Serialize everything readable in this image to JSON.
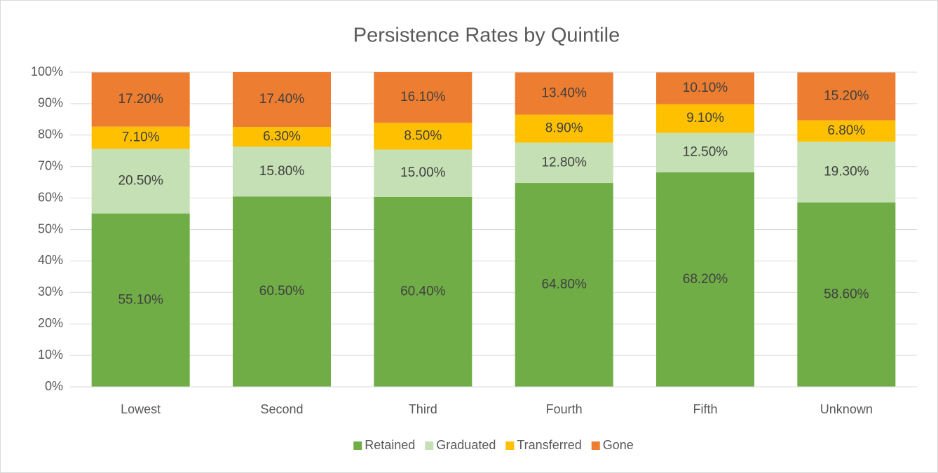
{
  "chart_data": {
    "type": "bar",
    "stacked": true,
    "title": "Persistence Rates by Quintile",
    "categories": [
      "Lowest",
      "Second",
      "Third",
      "Fourth",
      "Fifth",
      "Unknown"
    ],
    "series": [
      {
        "name": "Retained",
        "color": "#70ad47",
        "values": [
          55.1,
          60.5,
          60.4,
          64.8,
          68.2,
          58.6
        ],
        "value_labels": [
          "55.10%",
          "60.50%",
          "60.40%",
          "64.80%",
          "68.20%",
          "58.60%"
        ]
      },
      {
        "name": "Graduated",
        "color": "#c5e0b4",
        "values": [
          20.5,
          15.8,
          15.0,
          12.8,
          12.5,
          19.3
        ],
        "value_labels": [
          "20.50%",
          "15.80%",
          "15.00%",
          "12.80%",
          "12.50%",
          "19.30%"
        ]
      },
      {
        "name": "Transferred",
        "color": "#ffc000",
        "values": [
          7.1,
          6.3,
          8.5,
          8.9,
          9.1,
          6.8
        ],
        "value_labels": [
          "7.10%",
          "6.30%",
          "8.50%",
          "8.90%",
          "9.10%",
          "6.80%"
        ]
      },
      {
        "name": "Gone",
        "color": "#ed7d31",
        "values": [
          17.2,
          17.4,
          16.1,
          13.4,
          10.1,
          15.2
        ],
        "value_labels": [
          "17.20%",
          "17.40%",
          "16.10%",
          "13.40%",
          "10.10%",
          "15.20%"
        ]
      }
    ],
    "ylim": [
      0,
      100
    ],
    "yticks": [
      {
        "value": 0,
        "label": "0%"
      },
      {
        "value": 10,
        "label": "10%"
      },
      {
        "value": 20,
        "label": "20%"
      },
      {
        "value": 30,
        "label": "30%"
      },
      {
        "value": 40,
        "label": "40%"
      },
      {
        "value": 50,
        "label": "50%"
      },
      {
        "value": 60,
        "label": "60%"
      },
      {
        "value": 70,
        "label": "70%"
      },
      {
        "value": 80,
        "label": "80%"
      },
      {
        "value": 90,
        "label": "90%"
      },
      {
        "value": 100,
        "label": "100%"
      }
    ],
    "grid": true,
    "legend": "bottom"
  }
}
